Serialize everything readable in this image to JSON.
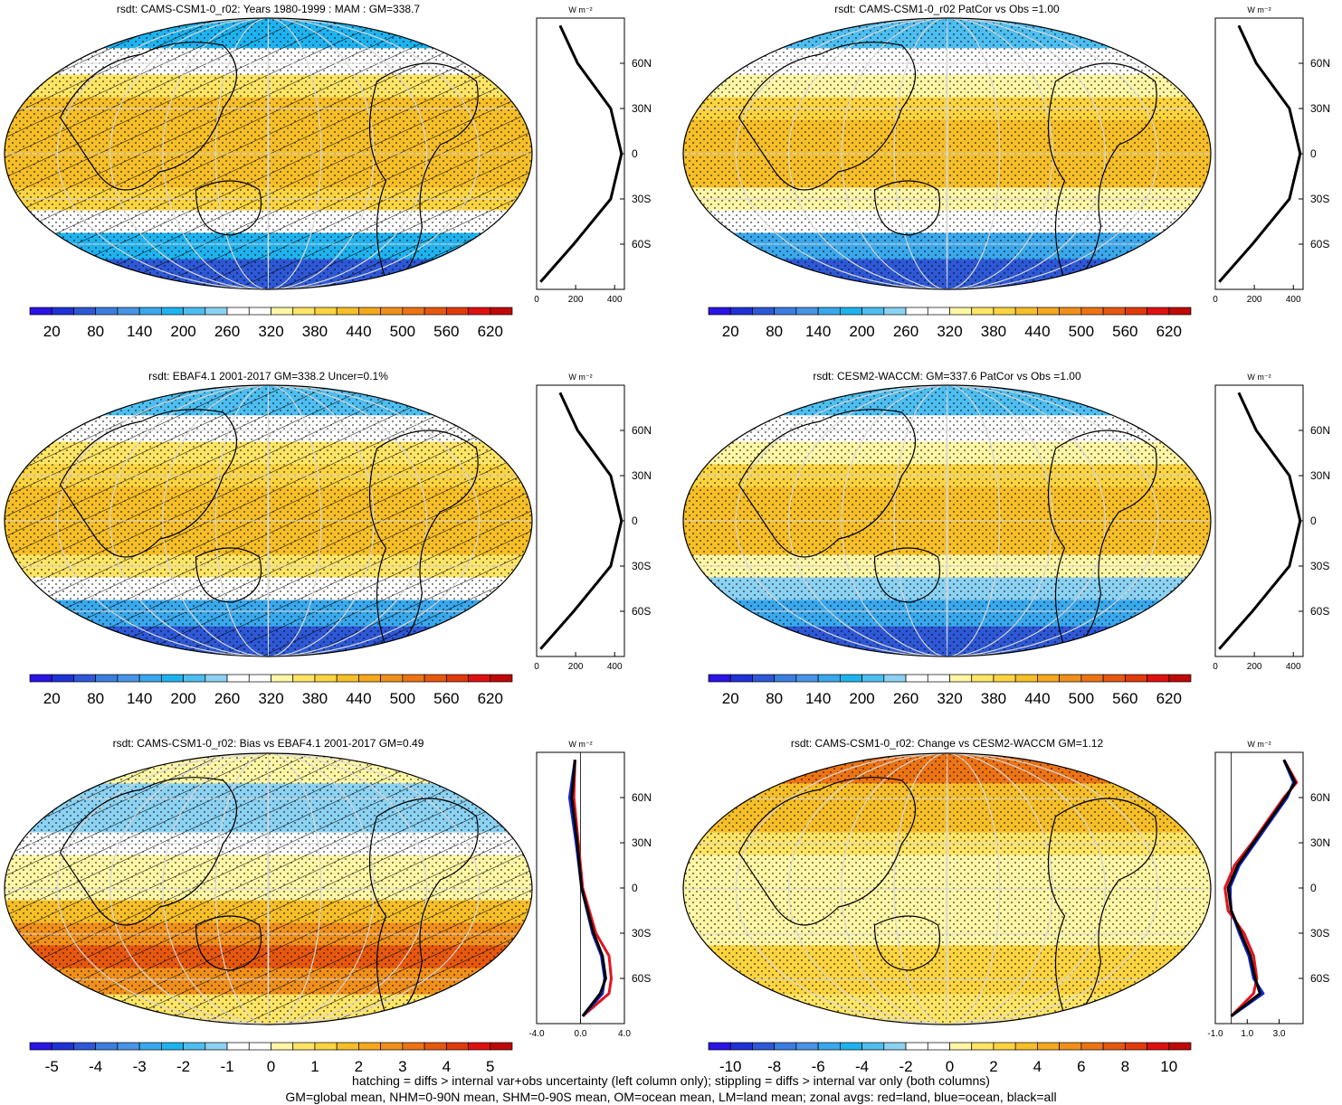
{
  "footer": {
    "line1": "hatching = diffs > internal var+obs uncertainty (left column only); stippling = diffs > internal var only (both columns)",
    "line2": "GM=global mean, NHM=0-90N mean, SHM=0-90S mean, OM=ocean mean, LM=land mean; zonal avgs: red=land, blue=ocean, black=all"
  },
  "units_label": "W m⁻²",
  "lat_ticks": [
    "60N",
    "30N",
    "0",
    "30S",
    "60S"
  ],
  "colors": {
    "climatology_palette": [
      "#2b14e6",
      "#1e32d6",
      "#2e58d6",
      "#3c7ee0",
      "#4894e6",
      "#3aa8ec",
      "#1eb3ef",
      "#4ebef0",
      "#8cd2f2",
      "#ffffff",
      "#ffffff",
      "#fff6a6",
      "#ffe566",
      "#fcd440",
      "#f6bf28",
      "#f4a81c",
      "#f0901a",
      "#ec7414",
      "#e6580e",
      "#e03a0a",
      "#e01010",
      "#c00808"
    ],
    "land": "#e0141e",
    "ocean": "#1428d2",
    "all": "#000000"
  },
  "chart_data": [
    {
      "type": "heatmap",
      "title": "rsdt: CAMS-CSM1-0_r02: Years 1980-1999 : MAM : GM=338.7",
      "colorbar_ticks": [
        "20",
        "80",
        "140",
        "200",
        "260",
        "320",
        "380",
        "440",
        "500",
        "560",
        "620"
      ],
      "hatching": true,
      "stippling": true,
      "lat_bands": [
        80,
        60,
        45,
        30,
        15,
        0,
        -15,
        -30,
        -45,
        -60,
        -80
      ],
      "band_values": [
        180,
        300,
        360,
        410,
        430,
        440,
        420,
        380,
        300,
        170,
        60
      ],
      "zonal_profile": {
        "xlim": [
          0,
          450
        ],
        "xticks": [
          "0",
          "200",
          "400"
        ],
        "lat": [
          85,
          60,
          30,
          0,
          -30,
          -60,
          -85
        ],
        "all": [
          120,
          210,
          380,
          435,
          380,
          190,
          20
        ]
      }
    },
    {
      "type": "heatmap",
      "title": "rsdt: CAMS-CSM1-0_r02 PatCor vs Obs =1.00",
      "colorbar_ticks": [
        "20",
        "80",
        "140",
        "200",
        "260",
        "320",
        "380",
        "440",
        "500",
        "560",
        "620"
      ],
      "hatching": false,
      "stippling": true,
      "lat_bands": [
        80,
        60,
        45,
        30,
        15,
        0,
        -15,
        -30,
        -45,
        -60,
        -80
      ],
      "band_values": [
        210,
        260,
        330,
        390,
        430,
        430,
        420,
        340,
        260,
        150,
        70
      ],
      "zonal_profile": {
        "xlim": [
          0,
          450
        ],
        "xticks": [
          "0",
          "200",
          "400"
        ],
        "lat": [
          85,
          60,
          30,
          0,
          -30,
          -60,
          -85
        ],
        "all": [
          120,
          210,
          380,
          435,
          380,
          190,
          20
        ]
      }
    },
    {
      "type": "heatmap",
      "title": "rsdt: EBAF4.1 2001-2017 GM=338.2 Uncer=0.1%",
      "colorbar_ticks": [
        "20",
        "80",
        "140",
        "200",
        "260",
        "320",
        "380",
        "440",
        "500",
        "560",
        "620"
      ],
      "hatching": true,
      "stippling": true,
      "lat_bands": [
        80,
        60,
        45,
        30,
        15,
        0,
        -15,
        -30,
        -45,
        -60,
        -80
      ],
      "band_values": [
        200,
        300,
        360,
        400,
        420,
        425,
        410,
        360,
        280,
        160,
        60
      ],
      "zonal_profile": {
        "xlim": [
          0,
          450
        ],
        "xticks": [
          "0",
          "200",
          "400"
        ],
        "lat": [
          85,
          60,
          30,
          0,
          -30,
          -60,
          -85
        ],
        "all": [
          120,
          210,
          380,
          435,
          380,
          190,
          20
        ]
      }
    },
    {
      "type": "heatmap",
      "title": "rsdt: CESM2-WACCM: GM=337.6 PatCor vs Obs =1.00",
      "colorbar_ticks": [
        "20",
        "80",
        "140",
        "200",
        "260",
        "320",
        "380",
        "440",
        "500",
        "560",
        "620"
      ],
      "hatching": false,
      "stippling": true,
      "lat_bands": [
        80,
        60,
        45,
        30,
        15,
        0,
        -15,
        -30,
        -45,
        -60,
        -80
      ],
      "band_values": [
        210,
        300,
        330,
        400,
        430,
        430,
        410,
        320,
        250,
        150,
        70
      ],
      "zonal_profile": {
        "xlim": [
          0,
          450
        ],
        "xticks": [
          "0",
          "200",
          "400"
        ],
        "lat": [
          85,
          60,
          30,
          0,
          -30,
          -60,
          -85
        ],
        "all": [
          120,
          210,
          380,
          435,
          380,
          190,
          20
        ]
      }
    },
    {
      "type": "heatmap",
      "title": "rsdt: CAMS-CSM1-0_r02: Bias vs EBAF4.1 2001-2017 GM=0.49",
      "colorbar_ticks": [
        "-5",
        "-4",
        "-3",
        "-2",
        "-1",
        "0",
        "1",
        "2",
        "3",
        "4",
        "5"
      ],
      "hatching": true,
      "stippling": true,
      "lat_bands": [
        80,
        60,
        45,
        30,
        15,
        0,
        -15,
        -30,
        -45,
        -60,
        -80
      ],
      "band_values": [
        0,
        -1.2,
        -1.5,
        -0.6,
        0,
        0,
        1.5,
        2.5,
        3.5,
        2.5,
        0.5
      ],
      "zonal_profile": {
        "xlim": [
          -4.0,
          4.0
        ],
        "xticks": [
          "-4.0",
          "0.0",
          "4.0"
        ],
        "lat": [
          85,
          60,
          30,
          0,
          -30,
          -45,
          -60,
          -70,
          -85
        ],
        "all": [
          -0.5,
          -0.8,
          -0.3,
          0.1,
          1.2,
          2.0,
          2.3,
          1.8,
          0.2
        ],
        "land": [
          -0.5,
          -0.6,
          -0.2,
          0.2,
          1.4,
          2.6,
          2.8,
          2.6,
          0.2
        ],
        "ocean": [
          -0.5,
          -1.0,
          -0.4,
          0.1,
          1.1,
          1.9,
          2.2,
          2.0,
          0.2
        ]
      }
    },
    {
      "type": "heatmap",
      "title": "rsdt: CAMS-CSM1-0_r02: Change vs CESM2-WACCM GM=1.12",
      "colorbar_ticks": [
        "-10",
        "-8",
        "-6",
        "-4",
        "-2",
        "0",
        "2",
        "4",
        "6",
        "8",
        "10"
      ],
      "hatching": false,
      "stippling": true,
      "lat_bands": [
        80,
        60,
        45,
        30,
        15,
        0,
        -15,
        -30,
        -45,
        -60,
        -80
      ],
      "band_values": [
        6,
        4,
        3,
        1.5,
        0,
        0,
        0,
        0,
        2,
        2,
        1
      ],
      "zonal_profile": {
        "xlim": [
          -1.0,
          4.5
        ],
        "xticks": [
          "-1.0",
          "1.0",
          "3.0"
        ],
        "lat": [
          85,
          70,
          60,
          45,
          30,
          15,
          0,
          -15,
          -30,
          -45,
          -60,
          -70,
          -85
        ],
        "all": [
          3.3,
          4.0,
          3.4,
          2.4,
          1.4,
          0.4,
          -0.2,
          0.0,
          0.6,
          1.2,
          1.5,
          1.8,
          0.0
        ],
        "land": [
          3.3,
          4.1,
          3.3,
          2.3,
          1.3,
          0.2,
          -0.4,
          -0.2,
          0.8,
          1.4,
          1.6,
          1.4,
          0.0
        ],
        "ocean": [
          3.3,
          3.9,
          3.5,
          2.5,
          1.5,
          0.5,
          -0.1,
          0.0,
          0.5,
          1.1,
          1.4,
          2.0,
          0.0
        ]
      }
    }
  ]
}
